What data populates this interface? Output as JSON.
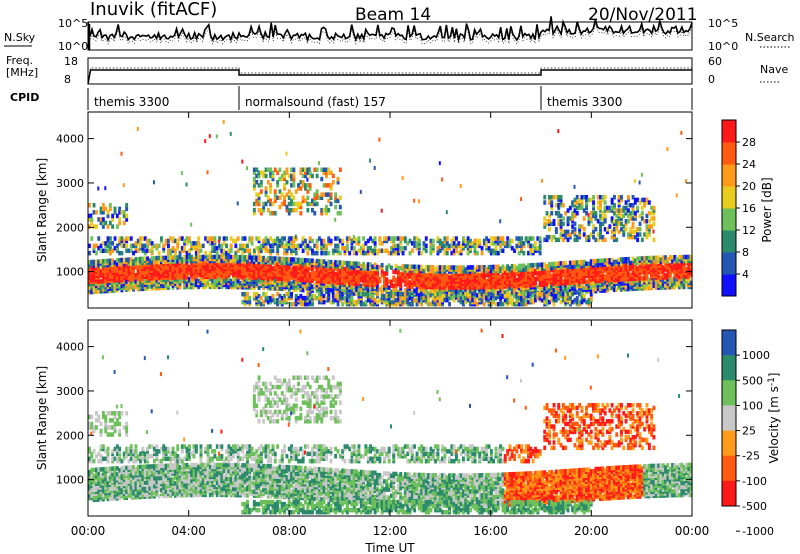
{
  "header": {
    "station": "Inuvik (fitACF)",
    "beam": "Beam 14",
    "date": "20/Nov/2011"
  },
  "panel_labels": {
    "nsky": "N.Sky",
    "nsearch": "N.Search",
    "freq_line1": "Freq.",
    "freq_line2": "[MHz]",
    "nave": "Nave",
    "cpid": "CPID"
  },
  "colors": {
    "power": [
      "#1010ff",
      "#2456b4",
      "#2c8a6c",
      "#6dc05a",
      "#e8cc20",
      "#ff9a1a",
      "#ff5a10",
      "#ff1a1a"
    ],
    "velocity": [
      "#ff1a1a",
      "#ff5a10",
      "#ff9a1a",
      "#c8c8c8",
      "#6dc05a",
      "#2c8a6c",
      "#2456b4"
    ]
  },
  "chart_data": [
    {
      "type": "line",
      "name": "nsky_nsearch",
      "yticks_left": [
        "10^5",
        "10^0"
      ],
      "yticks_right": [
        "10^5",
        "10^0"
      ]
    },
    {
      "type": "line",
      "name": "freq_nave",
      "yticks_left": [
        "18",
        "8"
      ],
      "yticks_right": [
        "60",
        "0"
      ]
    },
    {
      "type": "table",
      "name": "cpid",
      "segments": [
        {
          "start": 0,
          "end": 6,
          "label": "themis 3300"
        },
        {
          "start": 6,
          "end": 18,
          "label": "normalsound (fast) 157"
        },
        {
          "start": 18,
          "end": 24,
          "label": "themis 3300"
        }
      ]
    },
    {
      "type": "heatmap",
      "name": "power",
      "ylabel": "Slant Range [km]",
      "yticks": [
        1000,
        2000,
        3000,
        4000
      ],
      "colorbar_label": "Power [dB]",
      "colorbar_ticks": [
        "4",
        "8",
        "12",
        "16",
        "20",
        "24",
        "28"
      ]
    },
    {
      "type": "heatmap",
      "name": "velocity",
      "ylabel": "Slant Range [km]",
      "yticks": [
        1000,
        2000,
        3000,
        4000
      ],
      "colorbar_label": "Velocity [m s^-1]",
      "colorbar_ticks": [
        "1000",
        "500",
        "100",
        "25",
        "-25",
        "-100",
        "-500",
        "-1000"
      ]
    }
  ],
  "time_axis": {
    "xlabel": "Time UT",
    "ticks": [
      "00:00",
      "04:00",
      "08:00",
      "12:00",
      "16:00",
      "20:00",
      "00:00"
    ],
    "xlim_hours": [
      0,
      24
    ]
  }
}
